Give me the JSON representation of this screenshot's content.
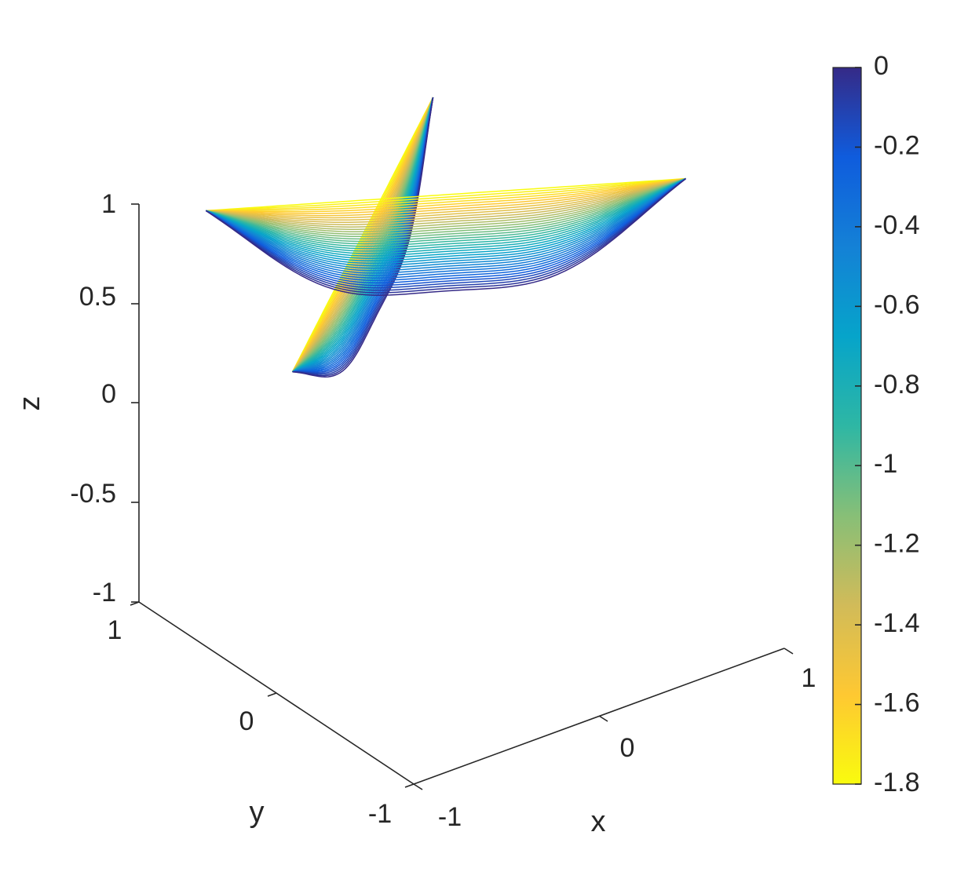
{
  "chart_data": {
    "type": "contour3",
    "title": "",
    "xlabel": "x",
    "ylabel": "y",
    "zlabel": "z",
    "xlim": [
      -1,
      1
    ],
    "ylim": [
      -1,
      1
    ],
    "zlim": [
      -1,
      1
    ],
    "x_ticks": [
      "-1",
      "0",
      "1"
    ],
    "y_ticks": [
      "-1",
      "0",
      "1"
    ],
    "z_ticks": [
      "-1",
      "-0.5",
      "0",
      "0.5",
      "1"
    ],
    "grid": false,
    "colorbar": {
      "location": "right",
      "range": [
        -1.8,
        0
      ],
      "ticks": [
        "0",
        "-0.2",
        "-0.4",
        "-0.6",
        "-0.8",
        "-1",
        "-1.2",
        "-1.4",
        "-1.6",
        "-1.8"
      ],
      "colormap": "parula",
      "colors": [
        "#352a87",
        "#0f5cdd",
        "#1481d6",
        "#06a4ca",
        "#2eb7a4",
        "#87bf77",
        "#d1bb59",
        "#fec832",
        "#f9fb0e"
      ]
    },
    "level_count": 40,
    "level_range": [
      -1.8,
      0
    ],
    "surface_note_free": true
  }
}
